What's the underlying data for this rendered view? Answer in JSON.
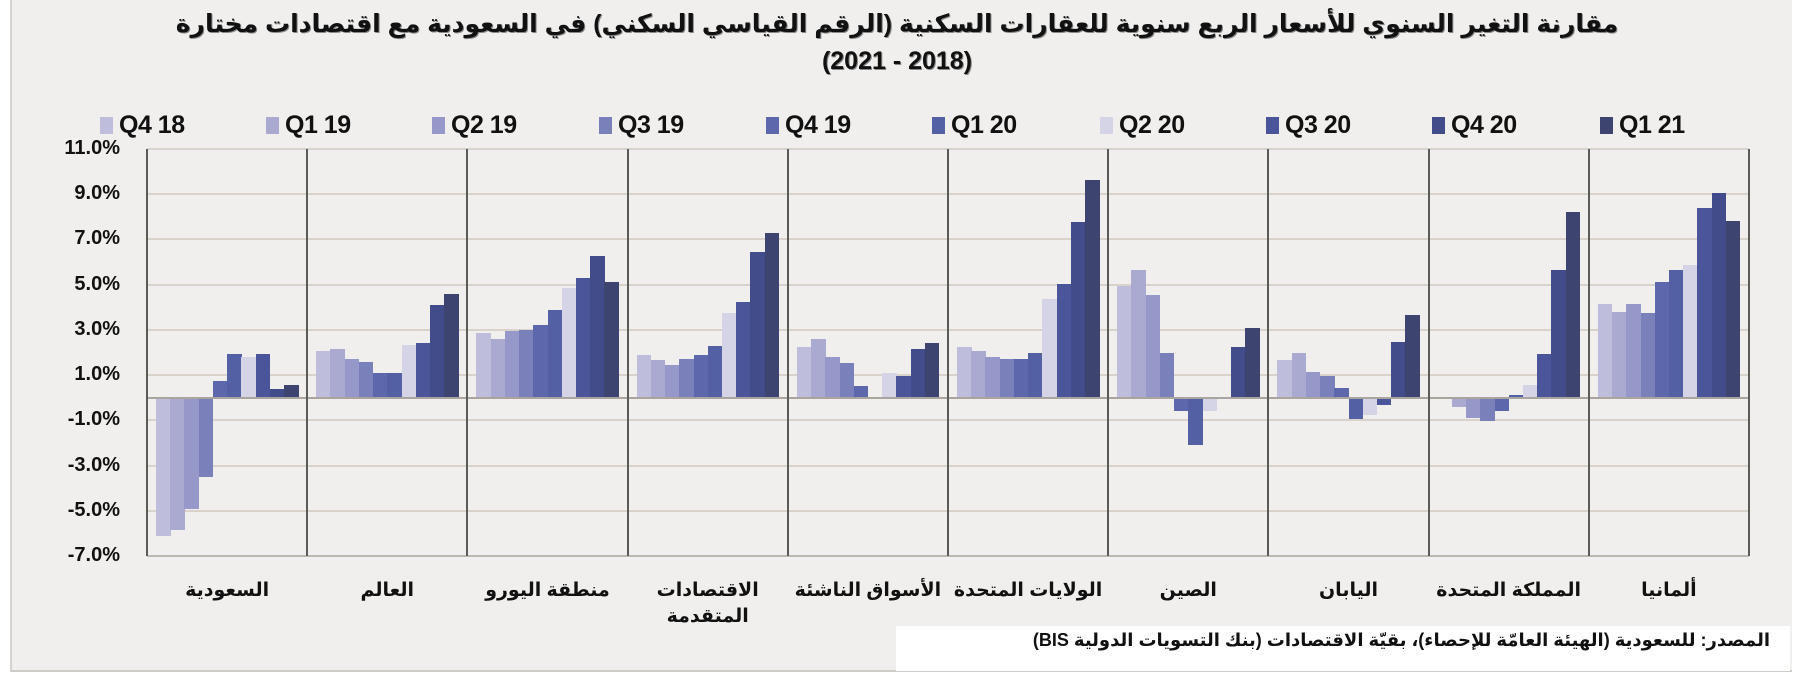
{
  "title": {
    "line1": "مقارنة التغير السنوي للأسعار الربع سنوية للعقارات السكنية (الرقم القياسي السكني) في السعودية مع اقتصادات مختارة",
    "line2": "(2021 - 2018)"
  },
  "source": "المصدر: للسعودية (الهيئة العامّة للإحصاء)، بقيّة الاقتصادات (بنك التسويات الدولية BIS)",
  "colors": {
    "background": "#f1efed",
    "series": [
      "#bebedc",
      "#aaaad0",
      "#9598c8",
      "#7a80ba",
      "#5d67ac",
      "#5460a4",
      "#d4d4e6",
      "#4a559a",
      "#434c8a",
      "#3e4470"
    ]
  },
  "legend": [
    "Q4 18",
    "Q1 19",
    "Q2 19",
    "Q3 19",
    "Q4 19",
    "Q1 20",
    "Q2 20",
    "Q3 20",
    "Q4 20",
    "Q1 21"
  ],
  "yaxis": {
    "ticks": [
      "11.0%",
      "9.0%",
      "7.0%",
      "5.0%",
      "3.0%",
      "1.0%",
      "-1.0%",
      "-3.0%",
      "-5.0%",
      "-7.0%"
    ]
  },
  "chart_data": {
    "type": "bar",
    "title": "مقارنة التغير السنوي للأسعار الربع سنوية للعقارات السكنية (الرقم القياسي السكني) في السعودية مع اقتصادات مختارة (2021 - 2018)",
    "xlabel": "",
    "ylabel": "",
    "ylim": [
      -7.0,
      11.0
    ],
    "ytick_step": 2.0,
    "grid": true,
    "legend_position": "top",
    "categories": [
      "السعودية",
      "العالم",
      "منطقة اليورو",
      "الاقتصادات المتقدمة",
      "الأسواق الناشئة",
      "الولايات المتحدة",
      "الصين",
      "اليابان",
      "المملكة المتحدة",
      "ألمانيا"
    ],
    "series": [
      {
        "name": "Q4 18",
        "values": [
          -6.1,
          2.05,
          2.85,
          1.9,
          2.25,
          2.25,
          4.95,
          1.65,
          0.05,
          4.15
        ]
      },
      {
        "name": "Q1 19",
        "values": [
          -5.85,
          2.15,
          2.6,
          1.65,
          2.6,
          2.05,
          5.65,
          2.0,
          -0.4,
          3.8
        ]
      },
      {
        "name": "Q2 19",
        "values": [
          -4.9,
          1.7,
          2.95,
          1.45,
          1.8,
          1.8,
          4.55,
          1.15,
          -0.9,
          4.15
        ]
      },
      {
        "name": "Q3 19",
        "values": [
          -3.5,
          1.6,
          3.0,
          1.7,
          1.55,
          1.7,
          2.0,
          0.95,
          -1.05,
          3.75
        ]
      },
      {
        "name": "Q4 19",
        "values": [
          0.75,
          1.1,
          3.2,
          1.9,
          0.5,
          1.7,
          -0.6,
          0.45,
          -0.6,
          5.1
        ]
      },
      {
        "name": "Q1 20",
        "values": [
          1.95,
          1.1,
          3.9,
          2.3,
          0.05,
          2.0,
          -2.1,
          -0.95,
          0.1,
          5.65
        ]
      },
      {
        "name": "Q2 20",
        "values": [
          1.8,
          2.35,
          4.85,
          3.75,
          1.1,
          4.35,
          -0.6,
          -0.75,
          0.55,
          5.85
        ]
      },
      {
        "name": "Q3 20",
        "values": [
          1.95,
          2.4,
          5.3,
          4.25,
          0.95,
          5.05,
          0.0,
          -0.3,
          1.95,
          8.4
        ]
      },
      {
        "name": "Q4 20",
        "values": [
          0.4,
          4.1,
          6.25,
          6.45,
          2.15,
          7.75,
          2.25,
          2.45,
          5.65,
          9.05
        ]
      },
      {
        "name": "Q1 21",
        "values": [
          0.55,
          4.6,
          5.1,
          7.3,
          2.4,
          9.65,
          3.1,
          3.65,
          8.2,
          7.8
        ]
      }
    ]
  },
  "category_labels": [
    {
      "line1": "السعودية",
      "line2": ""
    },
    {
      "line1": "العالم",
      "line2": ""
    },
    {
      "line1": "منطقة اليورو",
      "line2": ""
    },
    {
      "line1": "الاقتصادات",
      "line2": "المتقدمة"
    },
    {
      "line1": "الأسواق الناشئة",
      "line2": ""
    },
    {
      "line1": "الولايات المتحدة",
      "line2": ""
    },
    {
      "line1": "الصين",
      "line2": ""
    },
    {
      "line1": "اليابان",
      "line2": ""
    },
    {
      "line1": "المملكة المتحدة",
      "line2": ""
    },
    {
      "line1": "ألمانيا",
      "line2": ""
    }
  ]
}
